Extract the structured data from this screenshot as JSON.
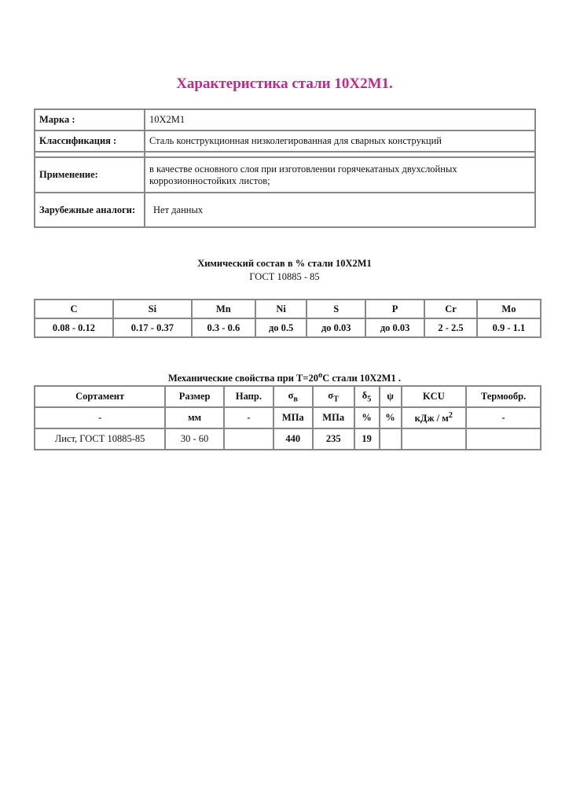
{
  "title": "Характеристика стали 10Х2М1.",
  "info": {
    "grade_label": "Марка :",
    "grade_value": "10Х2М1",
    "class_label": "Классификация :",
    "class_value": "Сталь конструкционная низколегированная для сварных конструкций",
    "use_label": "Применение:",
    "use_value": "в качестве основного слоя при изготовлении горячекатаных двухслойных коррозионностойких листов;",
    "analogs_label": "Зарубежные аналоги:",
    "analogs_value": "Нет данных"
  },
  "chem": {
    "title": "Химический состав в % стали   10Х2М1",
    "standard": "ГОСТ   10885 - 85",
    "headers": [
      "C",
      "Si",
      "Mn",
      "Ni",
      "S",
      "P",
      "Cr",
      "Mo"
    ],
    "values": [
      "0.08 - 0.12",
      "0.17 - 0.37",
      "0.3 - 0.6",
      "до   0.5",
      "до   0.03",
      "до   0.03",
      "2 - 2.5",
      "0.9 - 1.1"
    ]
  },
  "mech": {
    "title_a": "Механические свойства при Т=20",
    "title_sup": "o",
    "title_b": "С стали 10Х2М1 .",
    "headers": [
      "Сортамент",
      "Размер",
      "Напр.",
      "σ",
      "в",
      "σ",
      "T",
      "δ",
      "5",
      "ψ",
      "KCU",
      "Термообр."
    ],
    "units": [
      "-",
      "мм",
      "-",
      "МПа",
      "МПа",
      "%",
      "%",
      "кДж / м",
      "2",
      "-"
    ],
    "row": [
      "Лист, ГОСТ 10885-85",
      "30 - 60",
      "",
      "440",
      "235",
      "19",
      "",
      "",
      ""
    ]
  }
}
